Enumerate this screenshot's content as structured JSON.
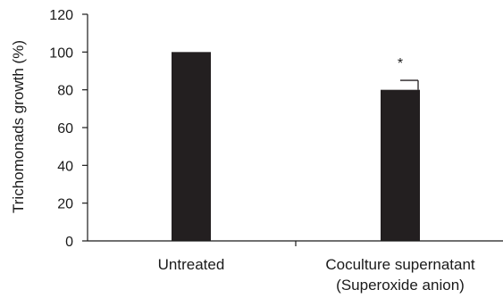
{
  "chart_data": {
    "type": "bar",
    "title": "",
    "xlabel": "",
    "ylabel": "Trichomonads growth (%)",
    "ylim": [
      0,
      120
    ],
    "yticks": [
      0,
      20,
      40,
      60,
      80,
      100,
      120
    ],
    "categories": [
      {
        "lines": [
          "Untreated"
        ]
      },
      {
        "lines": [
          "Coculture supernatant",
          "(Superoxide anion)"
        ]
      }
    ],
    "values": [
      100,
      80
    ],
    "error_plus": [
      0,
      5
    ],
    "annotations": [
      "",
      "*"
    ],
    "grid": false,
    "legend": "none",
    "bar_color": "#231f20"
  }
}
